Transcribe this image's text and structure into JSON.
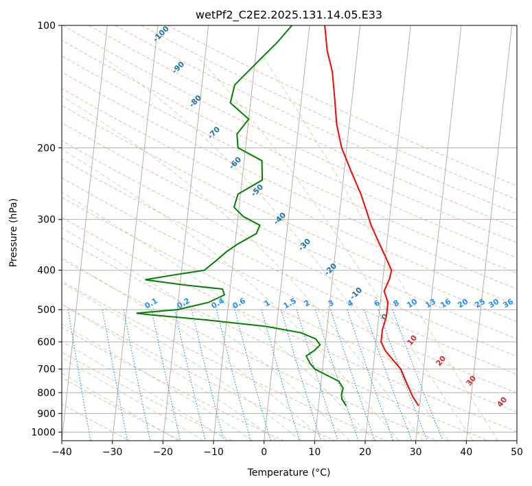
{
  "chart_data": {
    "type": "line",
    "title": "wetPf2_C2E2.2025.131.14.05.E33",
    "xlabel": "Temperature (°C)",
    "ylabel": "Pressure (hPa)",
    "xlim": [
      -40,
      50
    ],
    "ylim": [
      1050,
      100
    ],
    "yscale": "log",
    "grid": true,
    "x_ticks": [
      -40,
      -30,
      -20,
      -10,
      0,
      10,
      20,
      30,
      40,
      50
    ],
    "y_ticks": [
      100,
      200,
      300,
      400,
      500,
      600,
      700,
      800,
      900,
      1000
    ],
    "dry_adiabat_labels": [
      "-100",
      "-90",
      "-80",
      "-70",
      "-60",
      "-50",
      "-40",
      "-30",
      "-20",
      "-10"
    ],
    "mixing_ratio_labels": [
      "0.1",
      "0.2",
      "0.4",
      "0.6",
      "1",
      "1.5",
      "2",
      "3",
      "4",
      "6",
      "8",
      "10",
      "13",
      "16",
      "20",
      "25",
      "30",
      "36"
    ],
    "moist_adiabat_labels": [
      "0",
      "10",
      "20",
      "30",
      "40"
    ],
    "series": [
      {
        "name": "Temperature",
        "color": "#ff0000",
        "points": [
          [
            862,
            29.8
          ],
          [
            820,
            28.5
          ],
          [
            760,
            27.0
          ],
          [
            700,
            25.5
          ],
          [
            660,
            23.5
          ],
          [
            630,
            22.0
          ],
          [
            600,
            21.0
          ],
          [
            560,
            21.0
          ],
          [
            520,
            21.5
          ],
          [
            480,
            21.5
          ],
          [
            450,
            20.5
          ],
          [
            420,
            21.3
          ],
          [
            400,
            21.5
          ],
          [
            370,
            20.0
          ],
          [
            340,
            18.3
          ],
          [
            310,
            16.5
          ],
          [
            290,
            15.5
          ],
          [
            260,
            13.8
          ],
          [
            230,
            11.5
          ],
          [
            200,
            9.0
          ],
          [
            175,
            7.5
          ],
          [
            150,
            6.5
          ],
          [
            130,
            5.5
          ],
          [
            115,
            4.0
          ],
          [
            100,
            3.0
          ]
        ]
      },
      {
        "name": "Dewpoint",
        "color": "#008000",
        "points": [
          [
            862,
            15.5
          ],
          [
            830,
            14.5
          ],
          [
            810,
            14.3
          ],
          [
            780,
            14.5
          ],
          [
            750,
            13.5
          ],
          [
            720,
            10.5
          ],
          [
            700,
            8.5
          ],
          [
            680,
            7.5
          ],
          [
            650,
            6.5
          ],
          [
            630,
            8.0
          ],
          [
            610,
            9.0
          ],
          [
            590,
            8.0
          ],
          [
            570,
            5.0
          ],
          [
            550,
            -2.0
          ],
          [
            530,
            -14.0
          ],
          [
            515,
            -25.0
          ],
          [
            510,
            -28.0
          ],
          [
            500,
            -20.0
          ],
          [
            480,
            -14.0
          ],
          [
            460,
            -11.0
          ],
          [
            445,
            -11.5
          ],
          [
            435,
            -19.0
          ],
          [
            422,
            -27.0
          ],
          [
            410,
            -21.0
          ],
          [
            400,
            -15.5
          ],
          [
            380,
            -13.5
          ],
          [
            360,
            -11.5
          ],
          [
            345,
            -9.5
          ],
          [
            325,
            -6.0
          ],
          [
            310,
            -5.5
          ],
          [
            295,
            -9.0
          ],
          [
            280,
            -11.0
          ],
          [
            260,
            -10.5
          ],
          [
            240,
            -6.0
          ],
          [
            215,
            -6.5
          ],
          [
            200,
            -11.5
          ],
          [
            185,
            -12.0
          ],
          [
            170,
            -10.0
          ],
          [
            155,
            -14.0
          ],
          [
            140,
            -13.5
          ],
          [
            125,
            -10.0
          ],
          [
            110,
            -6.0
          ],
          [
            100,
            -3.5
          ]
        ]
      }
    ]
  }
}
